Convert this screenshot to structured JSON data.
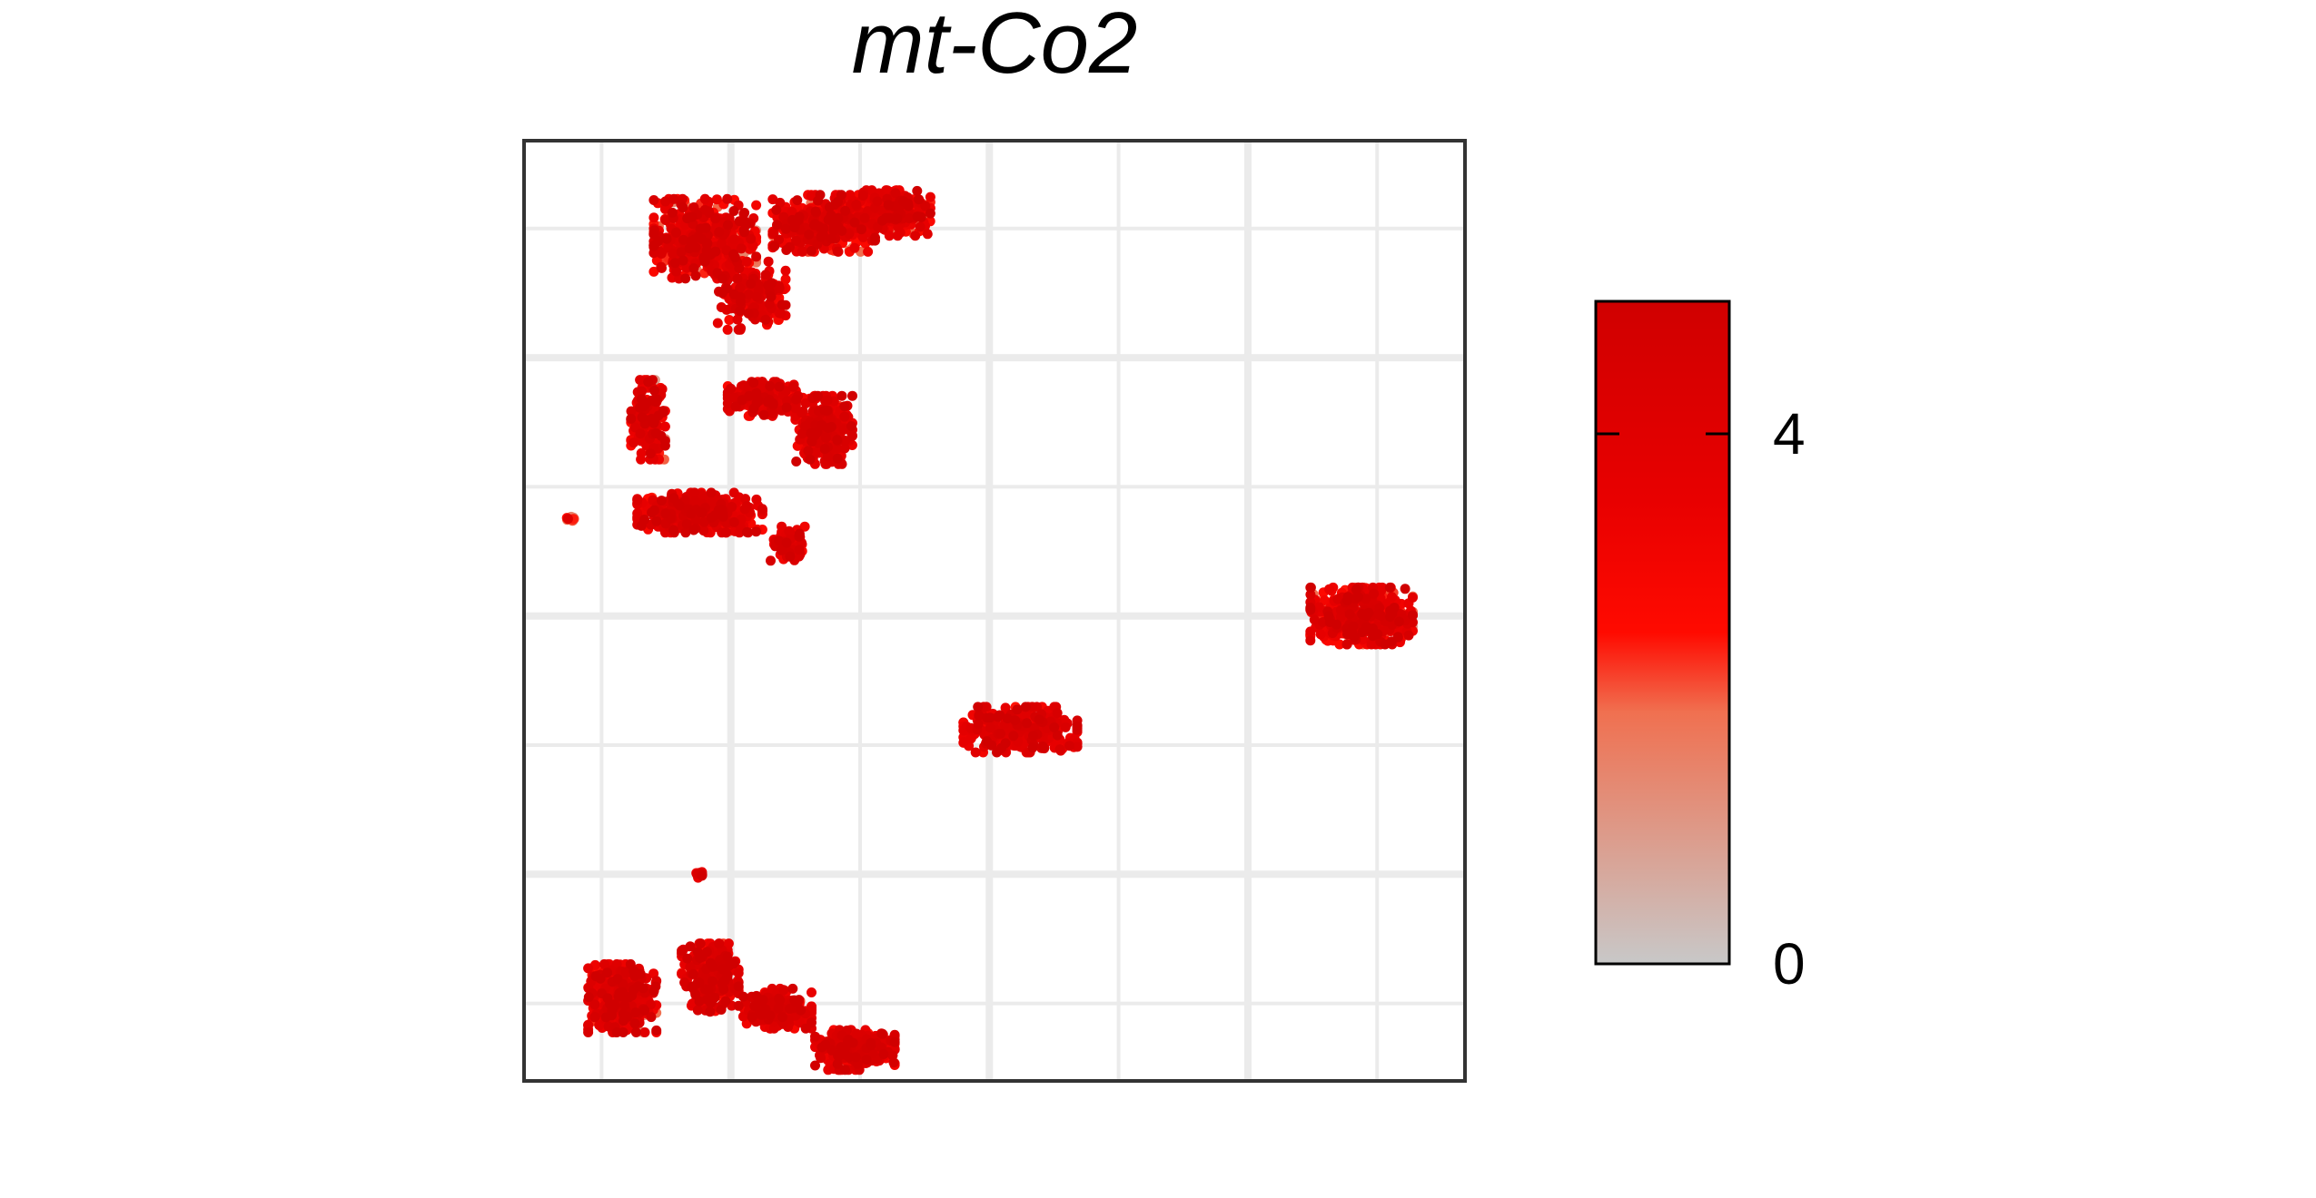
{
  "chart_data": {
    "type": "scatter",
    "title": "mt-Co2",
    "xlabel": "",
    "ylabel": "",
    "xlim": [
      -9,
      9.2
    ],
    "ylim": [
      -9,
      9.2
    ],
    "grid": true,
    "axis_ticks_labels_shown": false,
    "colorbar": {
      "min": 0,
      "max": 5,
      "ticks": [
        0,
        4
      ],
      "tick_labels": [
        "0",
        "4"
      ],
      "colors": [
        "#c8c8c8",
        "#f07050",
        "#ff0a00",
        "#e80000",
        "#d00000"
      ],
      "color_stops": [
        0,
        0.38,
        0.5,
        0.7,
        1
      ]
    },
    "clusters": [
      {
        "label_shown": false,
        "center": [
          -5.5,
          7.3
        ],
        "spread": [
          0.9,
          0.7
        ],
        "n": 520,
        "value_mean": 3.4,
        "value_sd": 1.1
      },
      {
        "label_shown": false,
        "center": [
          -3.2,
          7.6
        ],
        "spread": [
          0.9,
          0.5
        ],
        "n": 420,
        "value_mean": 3.5,
        "value_sd": 1.0
      },
      {
        "label_shown": false,
        "center": [
          -1.8,
          7.8
        ],
        "spread": [
          0.6,
          0.4
        ],
        "n": 260,
        "value_mean": 3.6,
        "value_sd": 0.9
      },
      {
        "label_shown": false,
        "center": [
          -4.6,
          6.2
        ],
        "spread": [
          0.6,
          0.6
        ],
        "n": 180,
        "value_mean": 3.7,
        "value_sd": 0.9
      },
      {
        "label_shown": false,
        "center": [
          -6.6,
          3.8
        ],
        "spread": [
          0.3,
          0.7
        ],
        "n": 200,
        "value_mean": 3.4,
        "value_sd": 1.1
      },
      {
        "label_shown": false,
        "center": [
          -4.4,
          4.2
        ],
        "spread": [
          0.6,
          0.3
        ],
        "n": 200,
        "value_mean": 3.9,
        "value_sd": 0.7
      },
      {
        "label_shown": false,
        "center": [
          -3.2,
          3.6
        ],
        "spread": [
          0.5,
          0.6
        ],
        "n": 260,
        "value_mean": 3.9,
        "value_sd": 0.7
      },
      {
        "label_shown": false,
        "center": [
          -5.6,
          2.0
        ],
        "spread": [
          1.1,
          0.35
        ],
        "n": 320,
        "value_mean": 3.8,
        "value_sd": 0.8
      },
      {
        "label_shown": false,
        "center": [
          -3.9,
          1.4
        ],
        "spread": [
          0.3,
          0.3
        ],
        "n": 60,
        "value_mean": 3.9,
        "value_sd": 0.7
      },
      {
        "label_shown": false,
        "center": [
          -8.1,
          1.9
        ],
        "spread": [
          0.1,
          0.05
        ],
        "n": 10,
        "value_mean": 2.0,
        "value_sd": 0.8
      },
      {
        "label_shown": false,
        "center": [
          0.6,
          -2.2
        ],
        "spread": [
          1.0,
          0.4
        ],
        "n": 320,
        "value_mean": 3.9,
        "value_sd": 0.7
      },
      {
        "label_shown": false,
        "center": [
          7.2,
          0.0
        ],
        "spread": [
          0.9,
          0.5
        ],
        "n": 420,
        "value_mean": 3.5,
        "value_sd": 1.1
      },
      {
        "label_shown": false,
        "center": [
          -5.6,
          -5.0
        ],
        "spread": [
          0.08,
          0.06
        ],
        "n": 12,
        "value_mean": 3.9,
        "value_sd": 0.5
      },
      {
        "label_shown": false,
        "center": [
          -7.1,
          -7.4
        ],
        "spread": [
          0.6,
          0.6
        ],
        "n": 380,
        "value_mean": 3.6,
        "value_sd": 1.0
      },
      {
        "label_shown": false,
        "center": [
          -5.4,
          -7.0
        ],
        "spread": [
          0.5,
          0.6
        ],
        "n": 300,
        "value_mean": 3.6,
        "value_sd": 1.0
      },
      {
        "label_shown": false,
        "center": [
          -4.1,
          -7.6
        ],
        "spread": [
          0.6,
          0.35
        ],
        "n": 200,
        "value_mean": 3.9,
        "value_sd": 0.7
      },
      {
        "label_shown": false,
        "center": [
          -2.6,
          -8.4
        ],
        "spread": [
          0.7,
          0.35
        ],
        "n": 280,
        "value_mean": 3.8,
        "value_sd": 0.8
      }
    ]
  }
}
